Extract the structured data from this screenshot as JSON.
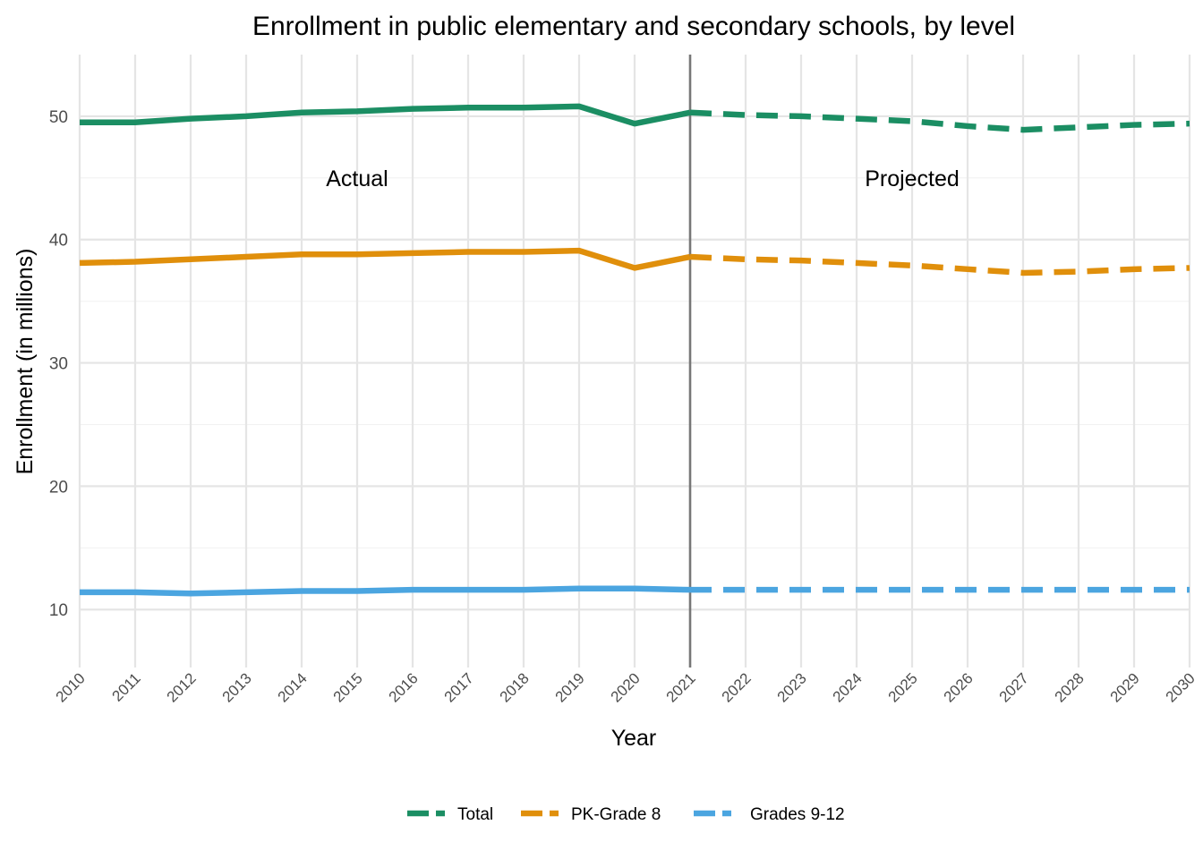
{
  "chart_data": {
    "type": "line",
    "title": "Enrollment in public elementary and secondary schools, by level",
    "xlabel": "Year",
    "ylabel": "Enrollment (in millions)",
    "x": [
      2010,
      2011,
      2012,
      2013,
      2014,
      2015,
      2016,
      2017,
      2018,
      2019,
      2020,
      2021,
      2022,
      2023,
      2024,
      2025,
      2026,
      2027,
      2028,
      2029,
      2030
    ],
    "xlim": [
      2010,
      2030
    ],
    "ylim": [
      5.3,
      55
    ],
    "yticks": [
      10,
      20,
      30,
      40,
      50
    ],
    "projection_start": 2021,
    "annotations": [
      {
        "text": "Actual",
        "x": 2015,
        "y": 45
      },
      {
        "text": "Projected",
        "x": 2025,
        "y": 45
      }
    ],
    "series": [
      {
        "name": "Total",
        "color": "#1b8e63",
        "values": [
          49.5,
          49.5,
          49.8,
          50.0,
          50.3,
          50.4,
          50.6,
          50.7,
          50.7,
          50.8,
          49.4,
          50.3,
          50.1,
          50.0,
          49.8,
          49.6,
          49.2,
          48.9,
          49.1,
          49.3,
          49.4
        ]
      },
      {
        "name": "PK-Grade 8",
        "color": "#e08f0b",
        "values": [
          38.1,
          38.2,
          38.4,
          38.6,
          38.8,
          38.8,
          38.9,
          39.0,
          39.0,
          39.1,
          37.7,
          38.6,
          38.4,
          38.3,
          38.1,
          37.9,
          37.6,
          37.3,
          37.4,
          37.6,
          37.7
        ]
      },
      {
        "name": "Grades 9-12",
        "color": "#4ba5e0",
        "values": [
          11.4,
          11.4,
          11.3,
          11.4,
          11.5,
          11.5,
          11.6,
          11.6,
          11.6,
          11.7,
          11.7,
          11.6,
          11.6,
          11.6,
          11.6,
          11.6,
          11.6,
          11.6,
          11.6,
          11.6,
          11.6
        ]
      }
    ],
    "legend": "bottom",
    "grid": true
  }
}
